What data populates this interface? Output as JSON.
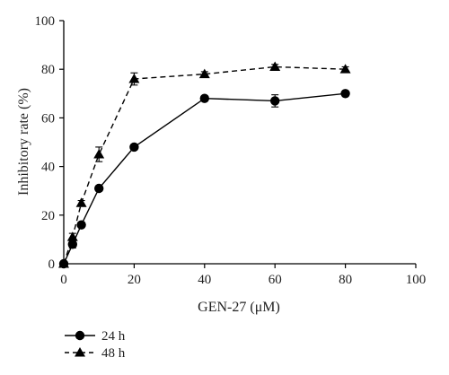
{
  "chart_data": {
    "type": "line",
    "title": "",
    "xlabel": "GEN-27 (μM)",
    "ylabel": "Inhibitory rate (%)",
    "xlim": [
      0,
      100
    ],
    "ylim": [
      0,
      100
    ],
    "x_ticks": [
      0,
      20,
      40,
      60,
      80,
      100
    ],
    "y_ticks": [
      0,
      20,
      40,
      60,
      80,
      100
    ],
    "grid": false,
    "legend_position": "bottom-left",
    "series": [
      {
        "name": "24 h",
        "marker": "circle",
        "line_style": "solid",
        "color": "#000000",
        "x": [
          0,
          2.5,
          5,
          10,
          20,
          40,
          60,
          80
        ],
        "y": [
          0,
          8,
          16,
          31,
          48,
          68,
          67,
          70
        ],
        "error": [
          0,
          1.5,
          1,
          1,
          1,
          1,
          2.5,
          1
        ]
      },
      {
        "name": "48 h",
        "marker": "triangle",
        "line_style": "dashed",
        "color": "#000000",
        "x": [
          0,
          2.5,
          5,
          10,
          20,
          40,
          60,
          80
        ],
        "y": [
          0,
          11,
          25,
          45,
          76,
          78,
          81,
          80
        ],
        "error": [
          0,
          1.5,
          1,
          3,
          2.5,
          1,
          1,
          1
        ]
      }
    ]
  }
}
